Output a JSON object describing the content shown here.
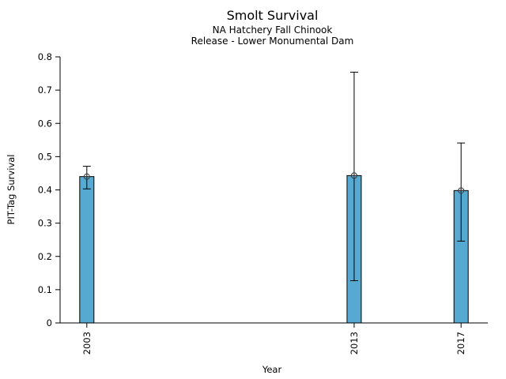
{
  "header": {
    "title": "Smolt Survival",
    "subtitle1": "NA Hatchery Fall Chinook",
    "subtitle2": "Release - Lower Monumental Dam"
  },
  "chart_data": {
    "type": "bar",
    "title": "Smolt Survival",
    "subtitles": [
      "NA Hatchery Fall Chinook",
      "Release - Lower Monumental Dam"
    ],
    "xlabel": "Year",
    "ylabel": "PIT-Tag Survival",
    "categories": [
      "2003",
      "2013",
      "2017"
    ],
    "x": [
      2003,
      2013,
      2017
    ],
    "values": [
      0.44,
      0.443,
      0.398
    ],
    "error_low": [
      0.403,
      0.127,
      0.246
    ],
    "error_high": [
      0.471,
      0.754,
      0.541
    ],
    "xlim": [
      2002,
      2018
    ],
    "ylim": [
      0,
      0.8
    ],
    "yticks": [
      0,
      0.1,
      0.2,
      0.3,
      0.4,
      0.5,
      0.6,
      0.7,
      0.8
    ],
    "ytick_labels": [
      "0",
      "0.1",
      "0.2",
      "0.3",
      "0.4",
      "0.5",
      "0.6",
      "0.7",
      "0.8"
    ],
    "grid": false,
    "legend": null,
    "marker": "circle-plus-icon",
    "colors": {
      "bar_fill": "#56a9d1",
      "bar_edge": "#000000",
      "axis": "#000000",
      "error_bar": "#000000",
      "marker": "#3a3a3a",
      "text": "#000000"
    }
  }
}
